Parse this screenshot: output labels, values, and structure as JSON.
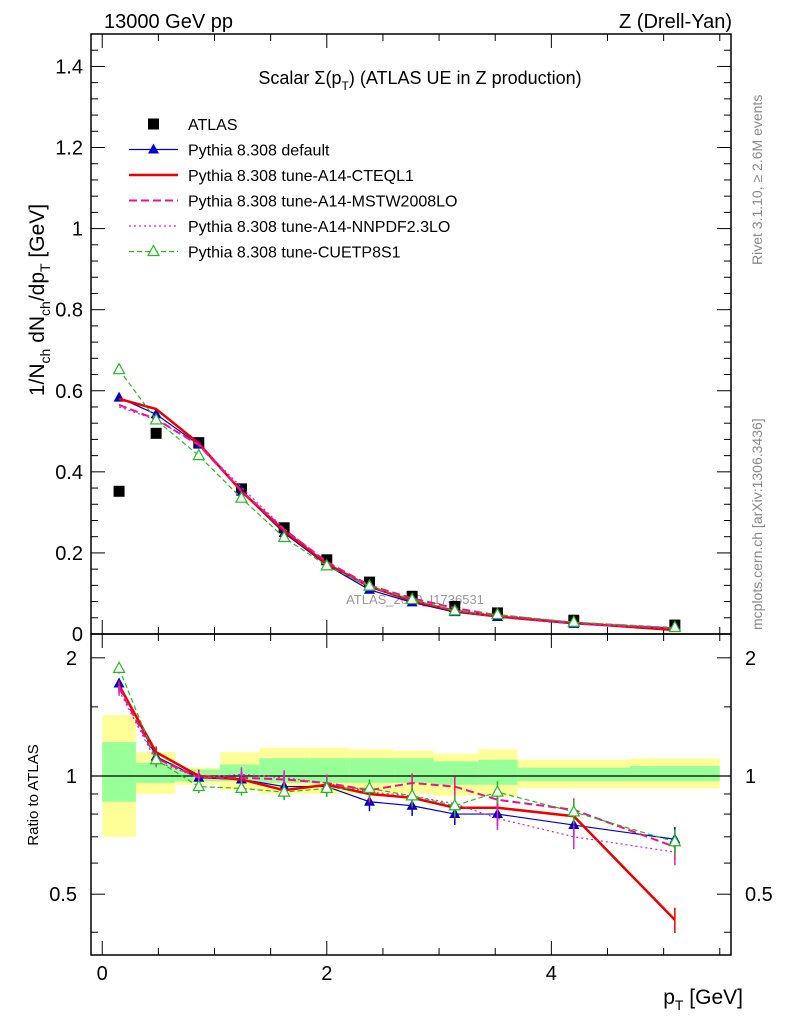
{
  "header": {
    "left": "13000 GeV pp",
    "right": "Z (Drell-Yan)"
  },
  "side_labels": {
    "rivet": "Rivet 3.1.10, ≥ 2.6M events",
    "mcplots": "mcplots.cern.ch [arXiv:1306.3436]"
  },
  "watermark": "ATLAS_2019_I1736531",
  "chart_data": [
    {
      "type": "line",
      "title": "Scalar Σ(pT) (ATLAS UE in Z production)",
      "title_parts": {
        "prefix": "Scalar Σ(p",
        "sub": "T",
        "suffix": ") (ATLAS UE in Z production)"
      },
      "ylabel": "1/N_ch dN_ch/dp_T [GeV]",
      "xlim": [
        -0.1,
        5.6
      ],
      "ylim": [
        0,
        1.48
      ],
      "yticks": [
        0,
        0.2,
        0.4,
        0.6,
        0.8,
        1,
        1.2,
        1.4
      ],
      "ytick_labels": [
        "0",
        "0.2",
        "0.4",
        "0.6",
        "0.8",
        "1",
        "1.2",
        "1.4"
      ],
      "legend_position": "top-left",
      "x": [
        0.15,
        0.48,
        0.86,
        1.24,
        1.62,
        2.0,
        2.38,
        2.76,
        3.14,
        3.52,
        4.2,
        5.1
      ],
      "series": [
        {
          "name": "ATLAS",
          "color": "#000000",
          "style": "data",
          "marker": "square",
          "values": [
            0.352,
            0.495,
            0.472,
            0.358,
            0.262,
            0.183,
            0.128,
            0.093,
            0.068,
            0.052,
            0.034,
            0.022
          ]
        },
        {
          "name": "Pythia 8.308 default",
          "color": "#0000cc",
          "style": "solid-thin",
          "marker": "triangle-filled",
          "values": [
            0.583,
            0.542,
            0.467,
            0.351,
            0.249,
            0.17,
            0.109,
            0.078,
            0.054,
            0.042,
            0.025,
            0.015
          ]
        },
        {
          "name": "Pythia 8.308 tune-A14-CTEQL1",
          "color": "#ee0000",
          "style": "solid-thick",
          "marker": "none",
          "values": [
            0.58,
            0.555,
            0.47,
            0.352,
            0.254,
            0.173,
            0.117,
            0.082,
            0.057,
            0.043,
            0.027,
            0.01
          ]
        },
        {
          "name": "Pythia 8.308 tune-A14-MSTW2008LO",
          "color": "#ee1188",
          "style": "dashed",
          "marker": "none",
          "values": [
            0.565,
            0.53,
            0.466,
            0.353,
            0.258,
            0.178,
            0.12,
            0.088,
            0.064,
            0.046,
            0.028,
            0.014
          ]
        },
        {
          "name": "Pythia 8.308 tune-A14-NNPDF2.3LO",
          "color": "#dd22cc",
          "style": "dotted",
          "marker": "none",
          "values": [
            0.56,
            0.528,
            0.468,
            0.362,
            0.26,
            0.177,
            0.118,
            0.083,
            0.058,
            0.041,
            0.024,
            0.014
          ]
        },
        {
          "name": "Pythia 8.308 tune-CUETP8S1",
          "color": "#22bb22",
          "style": "dashed-thin",
          "marker": "triangle-open",
          "values": [
            0.652,
            0.528,
            0.44,
            0.335,
            0.238,
            0.168,
            0.118,
            0.085,
            0.057,
            0.048,
            0.029,
            0.016
          ]
        }
      ]
    },
    {
      "type": "line",
      "xlabel": "p_T [GeV]",
      "ylabel": "Ratio to ATLAS",
      "xlim": [
        -0.1,
        5.6
      ],
      "ylim": [
        0.35,
        2.3
      ],
      "xticks": [
        0,
        2,
        4
      ],
      "xtick_labels": [
        "0",
        "2",
        "4"
      ],
      "yticks": [
        0.5,
        1,
        2
      ],
      "ytick_labels": [
        "0.5",
        "1",
        "2"
      ],
      "uncertainty_bands": {
        "edges": [
          0,
          0.3,
          0.65,
          1.05,
          1.4,
          1.8,
          2.2,
          2.6,
          2.95,
          3.35,
          3.7,
          4.7,
          5.5
        ],
        "green": [
          [
            0.86,
            1.22
          ],
          [
            0.96,
            1.08
          ],
          [
            0.97,
            1.04
          ],
          [
            0.97,
            1.07
          ],
          [
            0.96,
            1.11
          ],
          [
            0.96,
            1.11
          ],
          [
            0.96,
            1.11
          ],
          [
            0.96,
            1.11
          ],
          [
            0.95,
            1.09
          ],
          [
            0.95,
            1.1
          ],
          [
            0.97,
            1.05
          ],
          [
            0.97,
            1.06
          ]
        ],
        "yellow": [
          [
            0.7,
            1.43
          ],
          [
            0.9,
            1.15
          ],
          [
            0.95,
            1.05
          ],
          [
            0.92,
            1.15
          ],
          [
            0.9,
            1.18
          ],
          [
            0.9,
            1.18
          ],
          [
            0.9,
            1.17
          ],
          [
            0.9,
            1.16
          ],
          [
            0.89,
            1.14
          ],
          [
            0.89,
            1.17
          ],
          [
            0.93,
            1.1
          ],
          [
            0.93,
            1.11
          ]
        ]
      },
      "series": [
        {
          "name": "Pythia 8.308 default",
          "color": "#0000cc",
          "values": [
            1.72,
            1.12,
            0.99,
            0.98,
            0.94,
            0.94,
            0.86,
            0.84,
            0.8,
            0.8,
            0.75,
            0.69
          ]
        },
        {
          "name": "Pythia 8.308 tune-A14-CTEQL1",
          "color": "#ee0000",
          "values": [
            1.7,
            1.15,
            1.0,
            0.98,
            0.92,
            0.95,
            0.9,
            0.88,
            0.83,
            0.83,
            0.79,
            0.43
          ]
        },
        {
          "name": "Pythia 8.308 tune-A14-MSTW2008LO",
          "color": "#ee1188",
          "values": [
            1.68,
            1.11,
            0.99,
            0.99,
            0.98,
            0.96,
            0.92,
            0.96,
            0.94,
            0.87,
            0.82,
            0.66
          ]
        },
        {
          "name": "Pythia 8.308 tune-A14-NNPDF2.3LO",
          "color": "#dd22cc",
          "values": [
            1.65,
            1.09,
            0.99,
            1.01,
            0.99,
            0.96,
            0.91,
            0.89,
            0.85,
            0.78,
            0.7,
            0.64
          ]
        },
        {
          "name": "Pythia 8.308 tune-CUETP8S1",
          "color": "#22bb22",
          "values": [
            1.88,
            1.1,
            0.94,
            0.93,
            0.91,
            0.93,
            0.93,
            0.89,
            0.84,
            0.91,
            0.81,
            0.68
          ]
        }
      ]
    }
  ]
}
